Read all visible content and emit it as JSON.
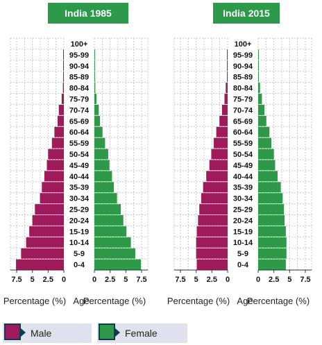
{
  "chart_data": [
    {
      "type": "bar",
      "orientation": "horizontal-population-pyramid",
      "title": "India 1985",
      "categories": [
        "0-4",
        "5-9",
        "10-14",
        "15-19",
        "20-24",
        "25-29",
        "30-34",
        "35-39",
        "40-44",
        "45-49",
        "50-54",
        "55-59",
        "60-64",
        "65-69",
        "70-74",
        "75-79",
        "80-84",
        "85-89",
        "90-94",
        "95-99",
        "100+"
      ],
      "series": [
        {
          "name": "Male",
          "color": "#9e1a5a",
          "values": [
            7.6,
            6.8,
            6.0,
            5.5,
            5.0,
            4.6,
            3.8,
            3.5,
            3.1,
            2.7,
            2.5,
            1.9,
            1.5,
            1.0,
            0.8,
            0.35,
            0.15,
            0.05,
            0.02,
            0.01,
            0.0
          ]
        },
        {
          "name": "Female",
          "color": "#2e9a49",
          "values": [
            7.4,
            6.5,
            5.8,
            5.1,
            4.6,
            4.2,
            3.6,
            3.1,
            2.8,
            2.4,
            2.2,
            1.7,
            1.3,
            0.9,
            0.7,
            0.35,
            0.15,
            0.05,
            0.02,
            0.01,
            0.0
          ]
        }
      ],
      "x_ticks_male": [
        "7.5",
        "5",
        "2.5",
        "0"
      ],
      "x_ticks_female": [
        "0",
        "2.5",
        "5",
        "7.5"
      ],
      "xlim": [
        0,
        8.5
      ],
      "xlabel_male": "Percentage (%)",
      "center_label": "Age",
      "xlabel_female": "Percentage (%)",
      "grid": true
    },
    {
      "type": "bar",
      "orientation": "horizontal-population-pyramid",
      "title": "India 2015",
      "categories": [
        "0-4",
        "5-9",
        "10-14",
        "15-19",
        "20-24",
        "25-29",
        "30-34",
        "35-39",
        "40-44",
        "45-49",
        "50-54",
        "55-59",
        "60-64",
        "65-69",
        "70-74",
        "75-79",
        "80-84",
        "85-89",
        "90-94",
        "95-99",
        "100+"
      ],
      "series": [
        {
          "name": "Male",
          "color": "#9e1a5a",
          "values": [
            4.9,
            5.0,
            5.0,
            4.9,
            4.7,
            4.5,
            4.2,
            3.9,
            3.4,
            2.9,
            2.6,
            2.2,
            1.8,
            1.3,
            0.9,
            0.5,
            0.3,
            0.1,
            0.05,
            0.02,
            0.0
          ]
        },
        {
          "name": "Female",
          "color": "#2e9a49",
          "values": [
            4.4,
            4.5,
            4.5,
            4.4,
            4.2,
            4.1,
            3.9,
            3.6,
            3.1,
            2.7,
            2.5,
            2.1,
            1.8,
            1.3,
            1.0,
            0.6,
            0.3,
            0.1,
            0.05,
            0.02,
            0.0
          ]
        }
      ],
      "x_ticks_male": [
        "7.5",
        "5",
        "2.5",
        "0"
      ],
      "x_ticks_female": [
        "0",
        "2.5",
        "5",
        "7.5"
      ],
      "xlim": [
        0,
        8.5
      ],
      "xlabel_male": "Percentage (%)",
      "center_label": "Age",
      "xlabel_female": "Percentage (%)",
      "grid": true
    }
  ],
  "legend": {
    "male_label": "Male",
    "female_label": "Female",
    "male_color": "#9e1a5a",
    "female_color": "#2e9a49"
  }
}
